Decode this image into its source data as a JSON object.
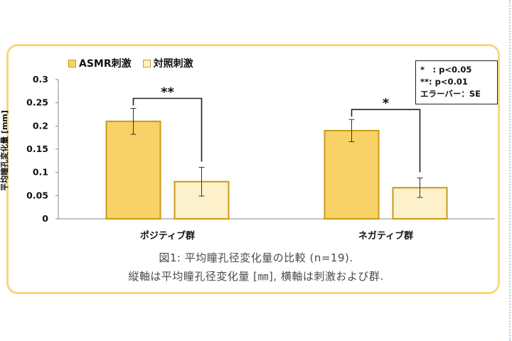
{
  "chart_data": {
    "type": "bar",
    "categories": [
      "ポジティブ群",
      "ネガティブ群"
    ],
    "series": [
      {
        "name": "ASMR刺激",
        "values": [
          0.21,
          0.19
        ],
        "errors": [
          0.028,
          0.024
        ],
        "color": "#f8d266",
        "border": "#c89a17"
      },
      {
        "name": "対照刺激",
        "values": [
          0.08,
          0.067
        ],
        "errors": [
          0.031,
          0.021
        ],
        "color": "#fdf1cc",
        "border": "#c89a17"
      }
    ],
    "ylabel": "平均瞳孔変化量 [mm]",
    "xlabel": "",
    "ylim": [
      0,
      0.3
    ],
    "yticks": [
      "0",
      "0.05",
      "0.1",
      "0.15",
      "0.2",
      "0.25",
      "0.3"
    ],
    "grid": false,
    "legend_position": "top-left",
    "significance": [
      {
        "category": "ポジティブ群",
        "label": "**"
      },
      {
        "category": "ネガティブ群",
        "label": "*"
      }
    ],
    "notes": [
      "*　: p<0.05",
      "**: p<0.01",
      "エラーバー：SE"
    ]
  },
  "caption": {
    "line1": "図1: 平均瞳孔径変化量の比較 (n=19).",
    "line2": "縦軸は平均瞳孔径変化量 [㎜], 横軸は刺激および群."
  },
  "colors": {
    "frame": "#f7d77f",
    "axis": "#888888",
    "bracket": "#222222"
  }
}
